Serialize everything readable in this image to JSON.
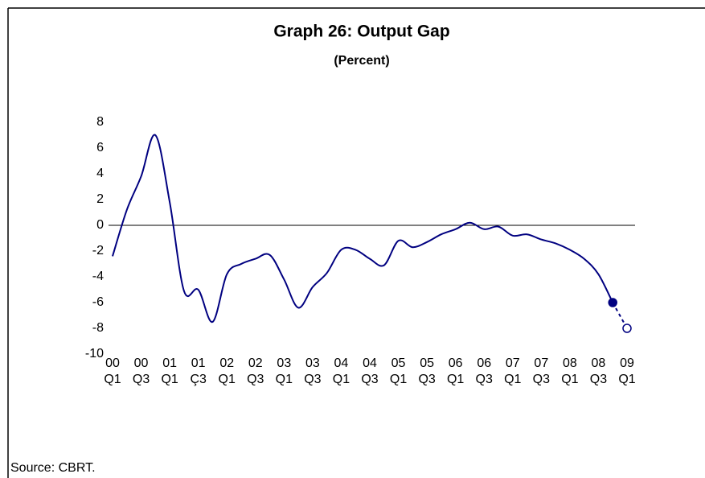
{
  "chart_data": {
    "type": "line",
    "title": "Graph 26: Output Gap",
    "subtitle": "(Percent)",
    "source": "Source: CBRT.",
    "categories": [
      [
        "00",
        "Q1"
      ],
      null,
      [
        "00",
        "Q3"
      ],
      null,
      [
        "01",
        "Q1"
      ],
      null,
      [
        "01",
        "Ç3"
      ],
      null,
      [
        "02",
        "Q1"
      ],
      null,
      [
        "02",
        "Q3"
      ],
      null,
      [
        "03",
        "Q1"
      ],
      null,
      [
        "03",
        "Q3"
      ],
      null,
      [
        "04",
        "Q1"
      ],
      null,
      [
        "04",
        "Q3"
      ],
      null,
      [
        "05",
        "Q1"
      ],
      null,
      [
        "05",
        "Q3"
      ],
      null,
      [
        "06",
        "Q1"
      ],
      null,
      [
        "06",
        "Q3"
      ],
      null,
      [
        "07",
        "Q1"
      ],
      null,
      [
        "07",
        "Q3"
      ],
      null,
      [
        "08",
        "Q1"
      ],
      null,
      [
        "08",
        "Q3"
      ],
      null,
      [
        "09",
        "Q1"
      ]
    ],
    "series": [
      {
        "color": "#000080",
        "dashed": false,
        "markers": [],
        "values": [
          -2.4,
          1.2,
          3.8,
          7.0,
          1.8,
          -5.1,
          -5.0,
          -7.5,
          -3.8,
          -3.0,
          -2.6,
          -2.3,
          -4.2,
          -6.4,
          -4.8,
          -3.7,
          -1.9,
          -1.9,
          -2.6,
          -3.1,
          -1.2,
          -1.7,
          -1.3,
          -0.7,
          -0.3,
          0.2,
          -0.3,
          -0.1,
          -0.8,
          -0.7,
          -1.1,
          -1.4,
          -1.9,
          -2.6,
          -3.8,
          -6.0,
          null
        ]
      },
      {
        "color": "#000080",
        "dashed": true,
        "markers": [
          "filled",
          "open"
        ],
        "values": [
          null,
          null,
          null,
          null,
          null,
          null,
          null,
          null,
          null,
          null,
          null,
          null,
          null,
          null,
          null,
          null,
          null,
          null,
          null,
          null,
          null,
          null,
          null,
          null,
          null,
          null,
          null,
          null,
          null,
          null,
          null,
          null,
          null,
          null,
          null,
          -6.0,
          -8.0
        ]
      }
    ],
    "ylim": [
      -10,
      8
    ],
    "yticks": [
      -10,
      -8,
      -6,
      -4,
      -2,
      0,
      2,
      4,
      6,
      8
    ],
    "zero_line": true,
    "grid": false
  }
}
